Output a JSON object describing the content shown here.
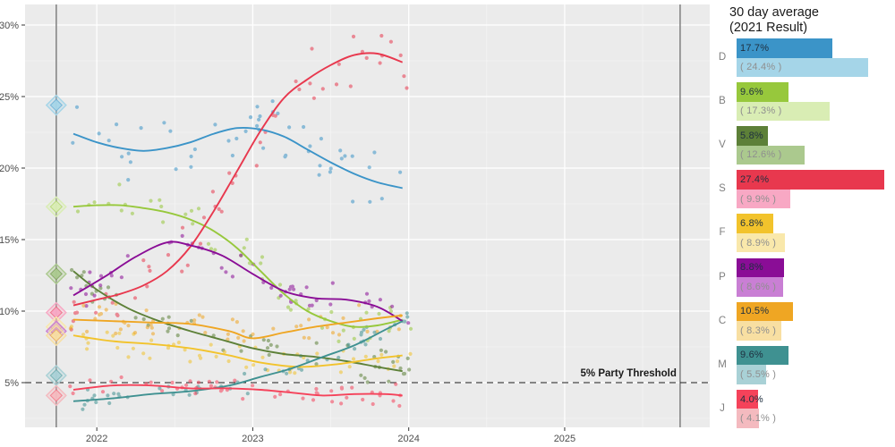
{
  "legend": {
    "title_line1": "30 day average",
    "title_line2": "(2021 Result)"
  },
  "chart_data": {
    "type": "scatter",
    "description": "Opinion polling scatter with smoothed trend lines per party; diamond markers on the left vertical line show the 2021 election result; right bars show 30 day polling average and (2021 result).",
    "title": "30 day average",
    "subtitle": "(2021 Result)",
    "xlabel": "",
    "ylabel": "",
    "x_ticks": [
      2022,
      2023,
      2024,
      2025
    ],
    "x_tick_labels": [
      "2022",
      "2023",
      "2024",
      "2025"
    ],
    "y_ticks_percent": [
      5,
      10,
      15,
      20,
      25,
      30
    ],
    "y_tick_labels": [
      "5%",
      "10%",
      "15%",
      "20%",
      "25%",
      "30%"
    ],
    "xlim": [
      2021.54,
      2025.93
    ],
    "ylim_percent": [
      1.9,
      31.4
    ],
    "grid": "on",
    "legend_position": "right",
    "threshold": {
      "percent": 5,
      "label": "5% Party Threshold"
    },
    "election_lines_x": [
      2021.74,
      2025.74
    ],
    "parties": [
      {
        "label": "D",
        "color": "#3b94c8",
        "light_color": "#a5d5e8",
        "avg_label": "17.7%",
        "result_label": "( 24.4% )",
        "avg_value": 17.7,
        "result_value": 24.4,
        "scatter_spread": 1.6,
        "trend": [
          [
            2021.85,
            22.4
          ],
          [
            2022.0,
            21.8
          ],
          [
            2022.15,
            21.4
          ],
          [
            2022.3,
            21.2
          ],
          [
            2022.45,
            21.4
          ],
          [
            2022.6,
            21.8
          ],
          [
            2022.75,
            22.4
          ],
          [
            2022.9,
            22.8
          ],
          [
            2023.05,
            22.7
          ],
          [
            2023.2,
            22.2
          ],
          [
            2023.35,
            21.3
          ],
          [
            2023.5,
            20.4
          ],
          [
            2023.65,
            19.6
          ],
          [
            2023.8,
            19.0
          ],
          [
            2023.96,
            18.6
          ]
        ]
      },
      {
        "label": "B",
        "color": "#97c83c",
        "light_color": "#d9edb4",
        "avg_label": "9.6%",
        "result_label": "( 17.3% )",
        "avg_value": 9.6,
        "result_value": 17.3,
        "scatter_spread": 1.1,
        "trend": [
          [
            2021.85,
            17.3
          ],
          [
            2022.0,
            17.4
          ],
          [
            2022.15,
            17.4
          ],
          [
            2022.3,
            17.2
          ],
          [
            2022.45,
            16.9
          ],
          [
            2022.6,
            16.4
          ],
          [
            2022.75,
            15.6
          ],
          [
            2022.9,
            14.4
          ],
          [
            2023.05,
            12.8
          ],
          [
            2023.2,
            11.2
          ],
          [
            2023.35,
            10.0
          ],
          [
            2023.5,
            9.3
          ],
          [
            2023.65,
            8.9
          ],
          [
            2023.8,
            9.0
          ],
          [
            2023.96,
            9.4
          ]
        ]
      },
      {
        "label": "V",
        "color": "#5d8038",
        "light_color": "#abc98e",
        "avg_label": "5.8%",
        "result_label": "( 12.6% )",
        "avg_value": 5.8,
        "result_value": 12.6,
        "scatter_spread": 0.9,
        "trend": [
          [
            2021.85,
            12.8
          ],
          [
            2022.0,
            11.5
          ],
          [
            2022.2,
            10.2
          ],
          [
            2022.4,
            9.3
          ],
          [
            2022.6,
            8.6
          ],
          [
            2022.8,
            8.0
          ],
          [
            2023.0,
            7.4
          ],
          [
            2023.2,
            7.0
          ],
          [
            2023.4,
            6.8
          ],
          [
            2023.6,
            6.5
          ],
          [
            2023.8,
            6.1
          ],
          [
            2023.96,
            5.8
          ]
        ]
      },
      {
        "label": "S",
        "color": "#e8384e",
        "light_color": "#f8a8c4",
        "avg_label": "27.4%",
        "result_label": "( 9.9% )",
        "avg_value": 27.4,
        "result_value": 9.9,
        "scatter_spread": 1.7,
        "trend": [
          [
            2021.85,
            10.4
          ],
          [
            2022.0,
            10.8
          ],
          [
            2022.15,
            11.2
          ],
          [
            2022.3,
            11.8
          ],
          [
            2022.45,
            12.8
          ],
          [
            2022.6,
            14.5
          ],
          [
            2022.75,
            17.0
          ],
          [
            2022.9,
            19.8
          ],
          [
            2023.05,
            22.6
          ],
          [
            2023.2,
            24.9
          ],
          [
            2023.35,
            26.2
          ],
          [
            2023.5,
            27.2
          ],
          [
            2023.65,
            27.9
          ],
          [
            2023.8,
            28.0
          ],
          [
            2023.96,
            27.4
          ]
        ]
      },
      {
        "label": "F",
        "color": "#f2c32c",
        "light_color": "#f9e8ab",
        "avg_label": "6.8%",
        "result_label": "( 8.9% )",
        "avg_value": 6.8,
        "result_value": 8.9,
        "scatter_spread": 0.8,
        "trend": [
          [
            2021.85,
            8.3
          ],
          [
            2022.1,
            7.9
          ],
          [
            2022.35,
            7.7
          ],
          [
            2022.6,
            7.4
          ],
          [
            2022.85,
            6.9
          ],
          [
            2023.05,
            6.4
          ],
          [
            2023.3,
            6.1
          ],
          [
            2023.55,
            6.3
          ],
          [
            2023.8,
            6.7
          ],
          [
            2023.96,
            6.9
          ]
        ]
      },
      {
        "label": "P",
        "color": "#8a0d96",
        "light_color": "#c97fd4",
        "avg_label": "8.8%",
        "result_label": "( 8.6% )",
        "avg_value": 8.8,
        "result_value": 8.6,
        "scatter_spread": 1.0,
        "trend": [
          [
            2021.85,
            11.1
          ],
          [
            2022.05,
            12.4
          ],
          [
            2022.25,
            13.8
          ],
          [
            2022.45,
            14.8
          ],
          [
            2022.6,
            14.6
          ],
          [
            2022.8,
            13.9
          ],
          [
            2023.0,
            12.6
          ],
          [
            2023.2,
            11.4
          ],
          [
            2023.4,
            10.9
          ],
          [
            2023.6,
            10.8
          ],
          [
            2023.8,
            10.3
          ],
          [
            2023.96,
            9.3
          ]
        ]
      },
      {
        "label": "C",
        "color": "#efa623",
        "light_color": "#f8dfa2",
        "avg_label": "10.5%",
        "result_label": "( 8.3% )",
        "avg_value": 10.5,
        "result_value": 8.3,
        "scatter_spread": 0.9,
        "trend": [
          [
            2021.85,
            9.4
          ],
          [
            2022.1,
            9.3
          ],
          [
            2022.35,
            9.2
          ],
          [
            2022.6,
            9.1
          ],
          [
            2022.85,
            8.6
          ],
          [
            2023.0,
            8.1
          ],
          [
            2023.2,
            8.5
          ],
          [
            2023.4,
            8.9
          ],
          [
            2023.6,
            9.2
          ],
          [
            2023.8,
            9.5
          ],
          [
            2023.96,
            9.7
          ]
        ]
      },
      {
        "label": "M",
        "color": "#3f9191",
        "light_color": "#a9d1d6",
        "avg_label": "9.6%",
        "result_label": "( 5.5% )",
        "avg_value": 9.6,
        "result_value": 5.5,
        "scatter_spread": 0.7,
        "trend": [
          [
            2021.85,
            3.7
          ],
          [
            2022.1,
            3.9
          ],
          [
            2022.35,
            4.2
          ],
          [
            2022.6,
            4.4
          ],
          [
            2022.85,
            4.8
          ],
          [
            2023.05,
            5.4
          ],
          [
            2023.25,
            6.0
          ],
          [
            2023.45,
            6.8
          ],
          [
            2023.65,
            7.6
          ],
          [
            2023.85,
            8.7
          ],
          [
            2023.96,
            9.3
          ]
        ]
      },
      {
        "label": "J",
        "color": "#f5425a",
        "light_color": "#f4babf",
        "avg_label": "4.0%",
        "result_label": "( 4.1% )",
        "avg_value": 4.0,
        "result_value": 4.1,
        "scatter_spread": 0.6,
        "trend": [
          [
            2021.85,
            4.5
          ],
          [
            2022.1,
            4.8
          ],
          [
            2022.35,
            4.8
          ],
          [
            2022.6,
            4.6
          ],
          [
            2022.85,
            4.6
          ],
          [
            2023.05,
            4.5
          ],
          [
            2023.25,
            4.3
          ],
          [
            2023.45,
            4.1
          ],
          [
            2023.65,
            4.2
          ],
          [
            2023.85,
            4.2
          ],
          [
            2023.96,
            4.1
          ]
        ]
      }
    ]
  }
}
